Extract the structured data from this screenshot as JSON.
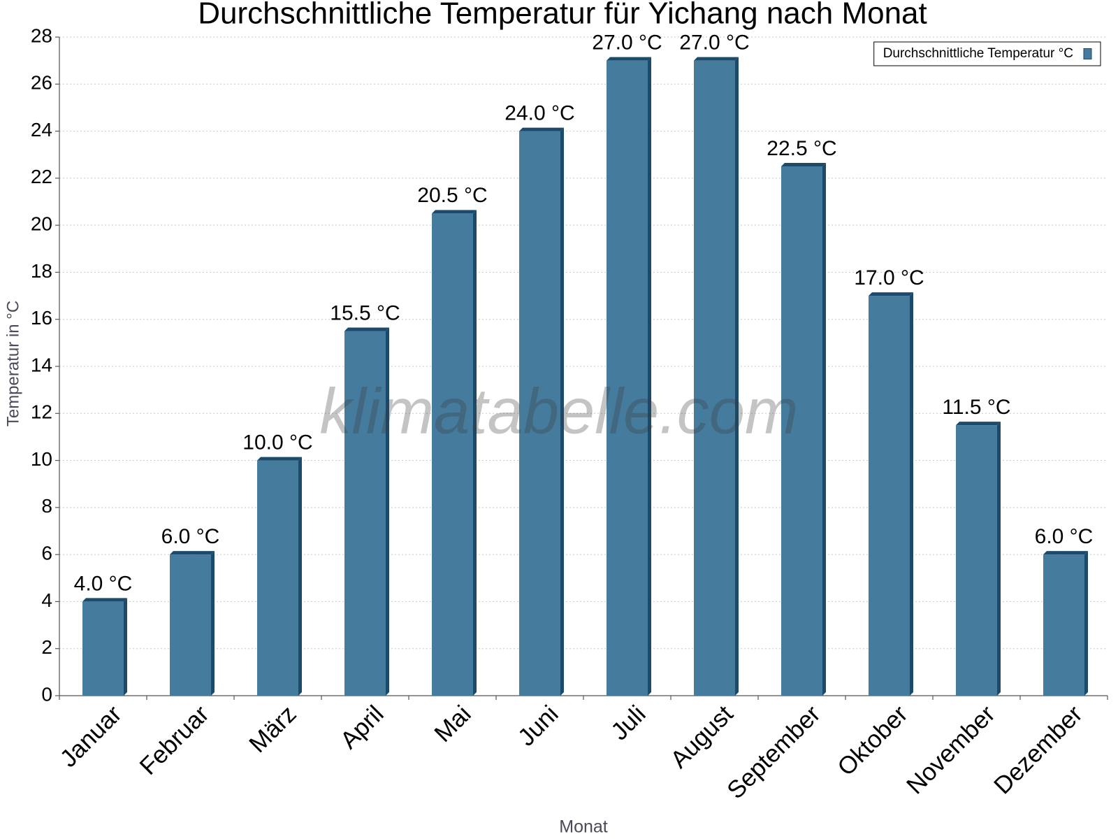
{
  "chart_data": {
    "type": "bar",
    "title": "Durchschnittliche Temperatur für Yichang nach Monat",
    "watermark": "klimatabelle.com",
    "x_label": "Monat",
    "y_label": "Temperatur in °C",
    "categories": [
      "Januar",
      "Februar",
      "März",
      "April",
      "Mai",
      "Juni",
      "Juli",
      "August",
      "September",
      "Oktober",
      "November",
      "Dezember"
    ],
    "series": [
      {
        "name": "Durchschnittliche Temperatur °C",
        "color": "#457b9d",
        "values": [
          4.0,
          6.0,
          10.0,
          15.5,
          20.5,
          24.0,
          27.0,
          27.0,
          22.5,
          17.0,
          11.5,
          6.0
        ],
        "value_labels": [
          "4.0 °C",
          "6.0 °C",
          "10.0 °C",
          "15.5 °C",
          "20.5 °C",
          "24.0 °C",
          "27.0 °C",
          "27.0 °C",
          "22.5 °C",
          "17.0 °C",
          "11.5 °C",
          "6.0 °C"
        ]
      }
    ],
    "ylim": [
      0,
      28
    ],
    "yticks": [
      0,
      2,
      4,
      6,
      8,
      10,
      12,
      14,
      16,
      18,
      20,
      22,
      24,
      26,
      28
    ],
    "grid": true,
    "legend": "upper right"
  }
}
